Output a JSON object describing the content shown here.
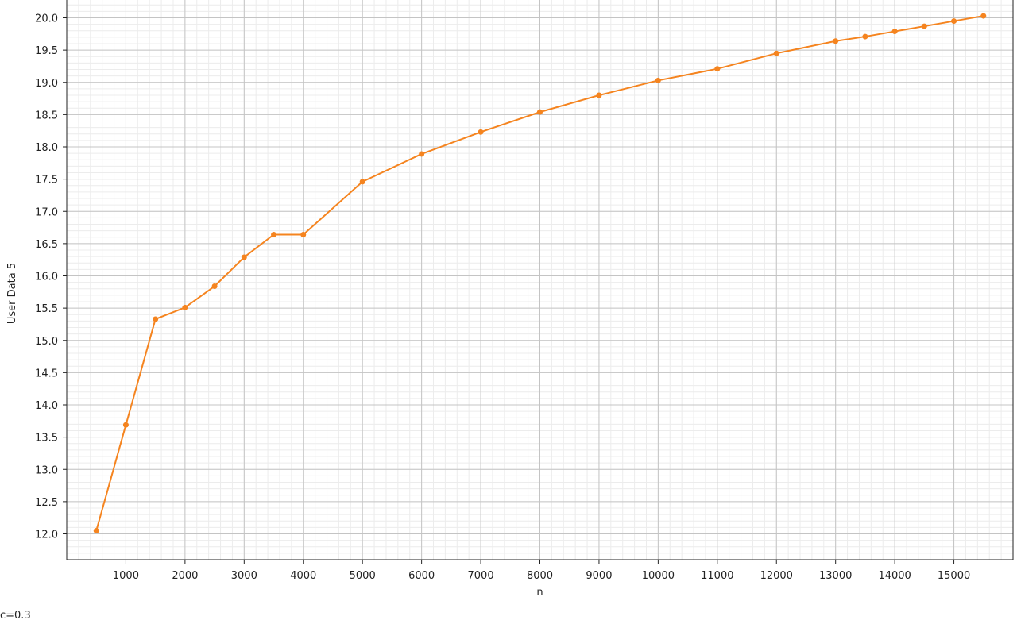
{
  "chart_data": {
    "type": "line",
    "title": "",
    "xlabel": "n",
    "ylabel": "User Data 5",
    "xlim": [
      0,
      16000
    ],
    "ylim": [
      11.6,
      20.4
    ],
    "xticks": [
      1000,
      2000,
      3000,
      4000,
      5000,
      6000,
      7000,
      8000,
      9000,
      10000,
      11000,
      12000,
      13000,
      14000,
      15000
    ],
    "yticks": [
      12.0,
      12.5,
      13.0,
      13.5,
      14.0,
      14.5,
      15.0,
      15.5,
      16.0,
      16.5,
      17.0,
      17.5,
      18.0,
      18.5,
      19.0,
      19.5,
      20.0
    ],
    "grid": true,
    "series": [
      {
        "color": "#f5841f",
        "x": [
          500,
          1000,
          1500,
          2000,
          2500,
          3000,
          3500,
          4000,
          5000,
          6000,
          7000,
          8000,
          9000,
          10000,
          11000,
          12000,
          13000,
          13500,
          14000,
          14500,
          15000,
          15500
        ],
        "y": [
          12.05,
          13.69,
          15.33,
          15.51,
          15.84,
          16.29,
          16.64,
          16.64,
          17.46,
          17.89,
          18.23,
          18.54,
          18.8,
          19.03,
          19.21,
          19.45,
          19.64,
          19.71,
          19.79,
          19.87,
          19.95,
          20.03
        ]
      }
    ]
  },
  "footer_note": "c=0.3"
}
